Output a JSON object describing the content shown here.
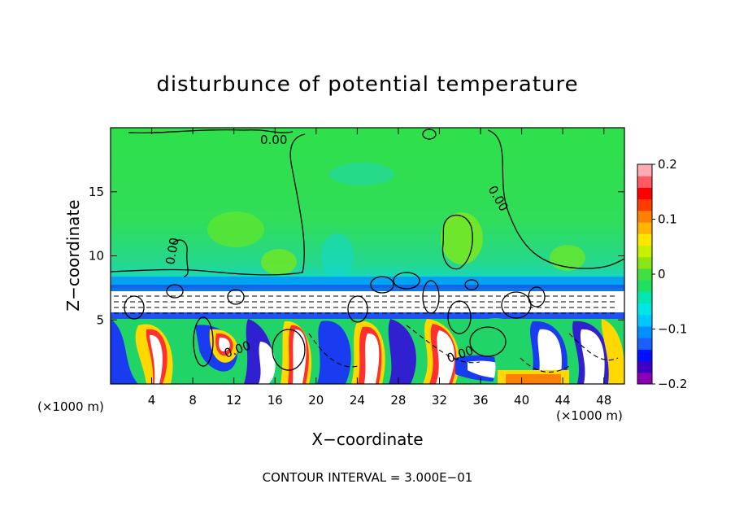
{
  "chart_data": {
    "type": "heatmap",
    "title": "disturbunce of potential temperature",
    "xlabel": "X−coordinate",
    "ylabel": "Z−coordinate",
    "x_unit": "(×1000 m)",
    "y_unit": "(×1000 m)",
    "xlim": [
      0,
      50
    ],
    "ylim": [
      0,
      20
    ],
    "x_ticks": [
      4,
      8,
      12,
      16,
      20,
      24,
      28,
      32,
      36,
      40,
      44,
      48
    ],
    "y_ticks": [
      5,
      10,
      15
    ],
    "colorbar": {
      "vmin": -0.2,
      "vmax": 0.2,
      "ticks": [
        0.2,
        0.1,
        0,
        -0.1,
        -0.2
      ],
      "tick_labels": [
        "0.2",
        "0.1",
        "0",
        "−0.1",
        "−0.2"
      ],
      "colors": [
        "#8b00b4",
        "#3c00c8",
        "#0010ff",
        "#1a60ff",
        "#0090ff",
        "#00c8ff",
        "#00e6e6",
        "#00e8b0",
        "#20e060",
        "#40e040",
        "#8ce614",
        "#c8f000",
        "#ffe600",
        "#ffb400",
        "#ff8000",
        "#ff3c00",
        "#ff0000",
        "#ff5a64",
        "#ffaab4"
      ]
    },
    "contour_labels": [
      "0.00",
      "0.00",
      "0.00",
      "0.00",
      "0.00"
    ],
    "footer": "CONTOUR INTERVAL = 3.000E−01",
    "grid": false
  }
}
